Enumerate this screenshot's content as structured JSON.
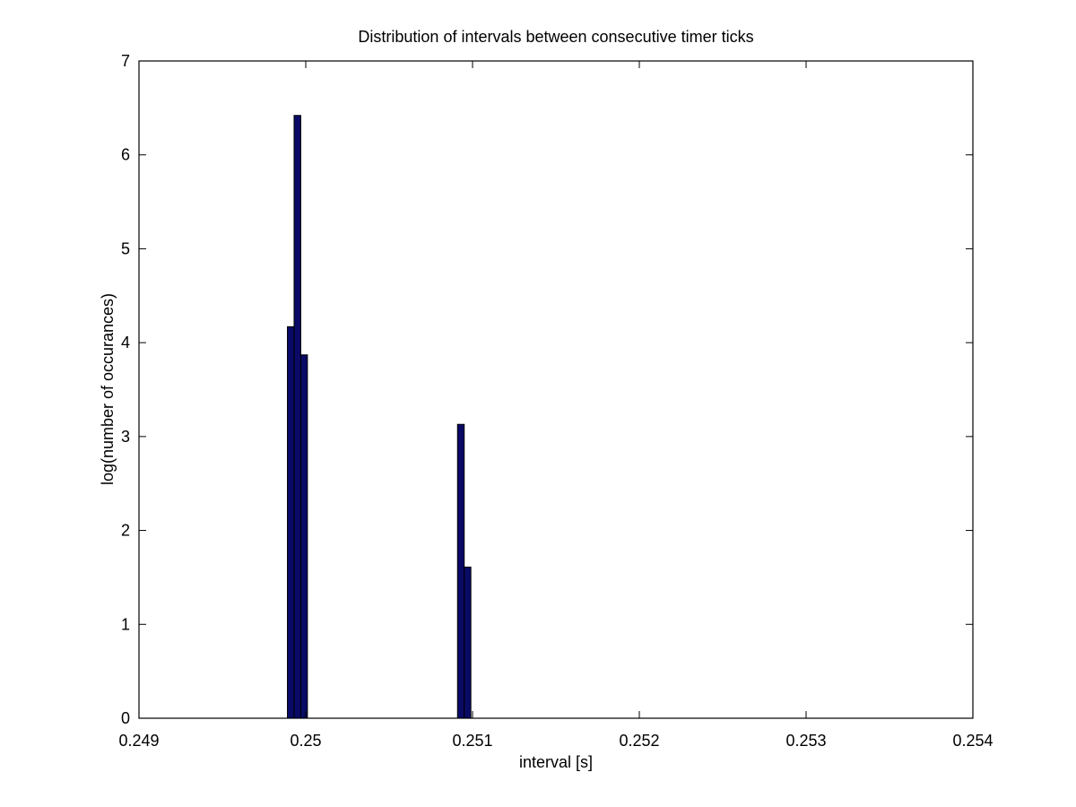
{
  "chart_data": {
    "type": "bar",
    "title": "Distribution of intervals between consecutive timer ticks",
    "xlabel": "interval [s]",
    "ylabel": "log(number of occurances)",
    "xlim": [
      0.249,
      0.254
    ],
    "ylim": [
      0,
      7
    ],
    "xticks": [
      "0.249",
      "0.25",
      "0.251",
      "0.252",
      "0.253",
      "0.254"
    ],
    "yticks": [
      "0",
      "1",
      "2",
      "3",
      "4",
      "5",
      "6",
      "7"
    ],
    "grid": false,
    "bar_width": 4e-05,
    "bar_color": "#0a0a66",
    "bars": [
      {
        "x": 0.24991,
        "value": 4.17
      },
      {
        "x": 0.24995,
        "value": 6.42
      },
      {
        "x": 0.24999,
        "value": 3.87
      },
      {
        "x": 0.25093,
        "value": 3.13
      },
      {
        "x": 0.25097,
        "value": 1.61
      }
    ]
  }
}
